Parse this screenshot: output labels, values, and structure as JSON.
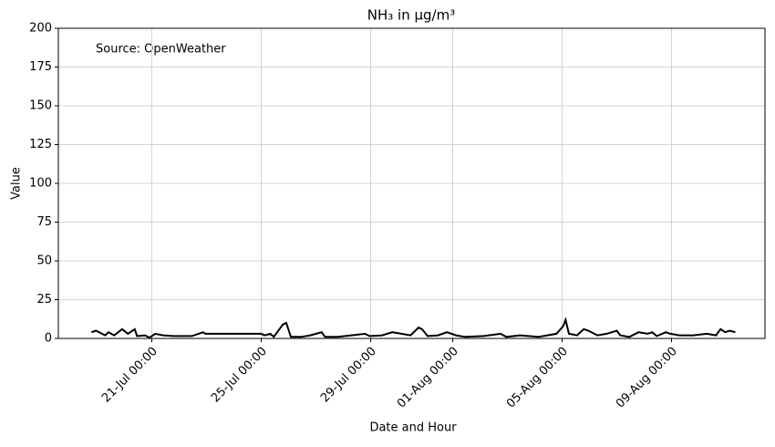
{
  "chart_data": {
    "type": "line",
    "title": "NH₃ in μg/m³",
    "annotation": "Source: OpenWeather",
    "xlabel": "Date and Hour",
    "ylabel": "Value",
    "grid": true,
    "x": [
      "18-Jul 19:00",
      "18-Jul 23:00",
      "19-Jul 07:00",
      "19-Jul 10:00",
      "19-Jul 15:00",
      "19-Jul 22:00",
      "20-Jul 03:00",
      "20-Jul 09:00",
      "20-Jul 11:00",
      "20-Jul 18:00",
      "20-Jul 22:00",
      "21-Jul 03:00",
      "21-Jul 10:00",
      "21-Jul 19:00",
      "22-Jul 11:00",
      "22-Jul 21:00",
      "22-Jul 23:00",
      "25-Jul 00:00",
      "25-Jul 03:00",
      "25-Jul 08:00",
      "25-Jul 11:00",
      "25-Jul 19:00",
      "25-Jul 22:00",
      "26-Jul 02:00",
      "26-Jul 11:00",
      "26-Jul 19:00",
      "27-Jul 05:00",
      "27-Jul 08:00",
      "27-Jul 19:00",
      "28-Jul 07:00",
      "28-Jul 19:00",
      "28-Jul 23:00",
      "29-Jul 10:00",
      "29-Jul 19:00",
      "30-Jul 03:00",
      "30-Jul 11:00",
      "30-Jul 18:00",
      "30-Jul 21:00",
      "31-Jul 02:00",
      "31-Jul 11:00",
      "31-Jul 19:00",
      "01-Aug 03:00",
      "01-Aug 11:00",
      "02-Aug 03:00",
      "02-Aug 18:00",
      "02-Aug 23:00",
      "03-Aug 11:00",
      "04-Aug 03:00",
      "04-Aug 11:00",
      "04-Aug 19:00",
      "05-Aug 01:00",
      "05-Aug 03:00",
      "05-Aug 06:00",
      "05-Aug 13:00",
      "05-Aug 19:00",
      "05-Aug 23:00",
      "06-Aug 07:00",
      "06-Aug 15:00",
      "07-Aug 00:00",
      "07-Aug 03:00",
      "07-Aug 11:00",
      "07-Aug 19:00",
      "08-Aug 03:00",
      "08-Aug 07:00",
      "08-Aug 11:00",
      "08-Aug 19:00",
      "08-Aug 23:00",
      "09-Aug 07:00",
      "09-Aug 19:00",
      "10-Aug 07:00",
      "10-Aug 15:00",
      "10-Aug 19:00",
      "10-Aug 23:00",
      "11-Aug 03:00",
      "11-Aug 08:00"
    ],
    "series": [
      {
        "name": "NH₃",
        "color": "#000000",
        "values": [
          4,
          5,
          2,
          4,
          2,
          6,
          3,
          6,
          1.5,
          2,
          0.5,
          3,
          2,
          1.5,
          1.5,
          4,
          3,
          3,
          2,
          3,
          1,
          9,
          10,
          1,
          1,
          2,
          4,
          1,
          1,
          2,
          3,
          1.5,
          2,
          4,
          3,
          2,
          7,
          6,
          1.5,
          2,
          4,
          2,
          1,
          1.5,
          3,
          1,
          2,
          1,
          2,
          3,
          8,
          12,
          3,
          2,
          6,
          5,
          2,
          3,
          5,
          2,
          1,
          4,
          3,
          4,
          1.5,
          4,
          3,
          2,
          2,
          3,
          2,
          6,
          4,
          5,
          4
        ]
      }
    ],
    "xlim": [
      "17-Jul 14:00",
      "12-Aug 10:00"
    ],
    "xticks": [
      "21-Jul 00:00",
      "25-Jul 00:00",
      "29-Jul 00:00",
      "01-Aug 00:00",
      "05-Aug 00:00",
      "09-Aug 00:00"
    ],
    "ylim": [
      0,
      200
    ],
    "yticks": [
      0,
      25,
      50,
      75,
      100,
      125,
      150,
      175,
      200
    ]
  }
}
